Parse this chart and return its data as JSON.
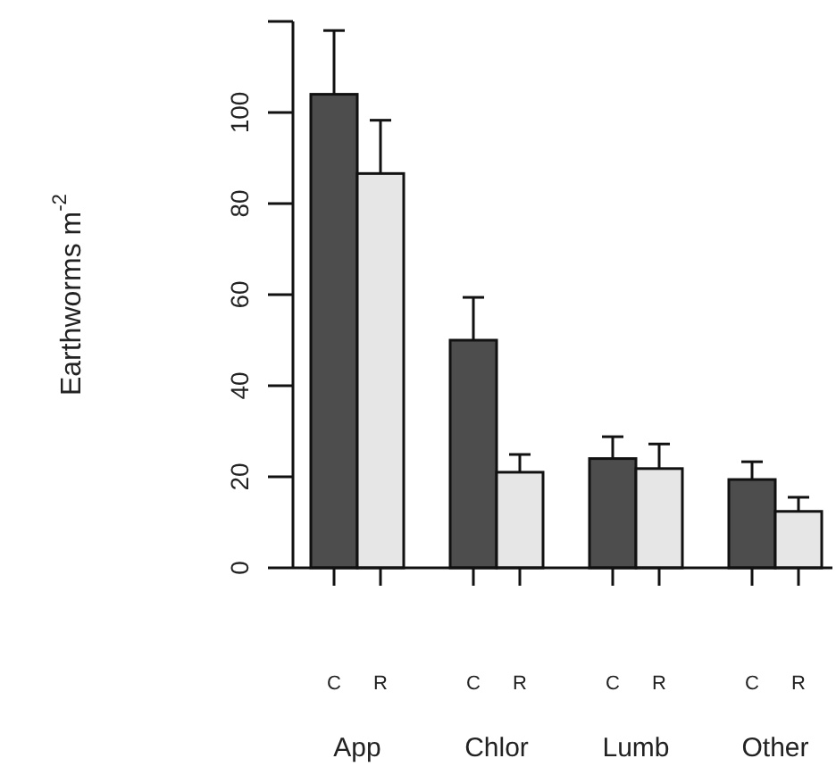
{
  "chart_data": {
    "type": "bar",
    "ylabel": "Earthworms m$^{-2}$",
    "categories": [
      "App",
      "Chlor",
      "Lumb",
      "Other"
    ],
    "series": [
      {
        "name": "C",
        "color": "#4d4d4d",
        "values": [
          104,
          50,
          24,
          19.4
        ],
        "errors": [
          [
            104,
            118
          ],
          [
            50,
            59.4
          ],
          [
            24,
            28.8
          ],
          [
            19.4,
            23.3
          ]
        ]
      },
      {
        "name": "R",
        "color": "#e6e6e6",
        "values": [
          86.6,
          21,
          21.8,
          12.4
        ],
        "errors": [
          [
            86.6,
            98.3
          ],
          [
            21,
            24.9
          ],
          [
            21.8,
            27.2
          ],
          [
            12.4,
            15.5
          ]
        ]
      }
    ],
    "ylim": [
      0,
      120
    ],
    "yticks": [
      0,
      20,
      40,
      60,
      80,
      100,
      {
        "value": 120,
        "label": null
      }
    ],
    "grid": false,
    "legend": false
  }
}
